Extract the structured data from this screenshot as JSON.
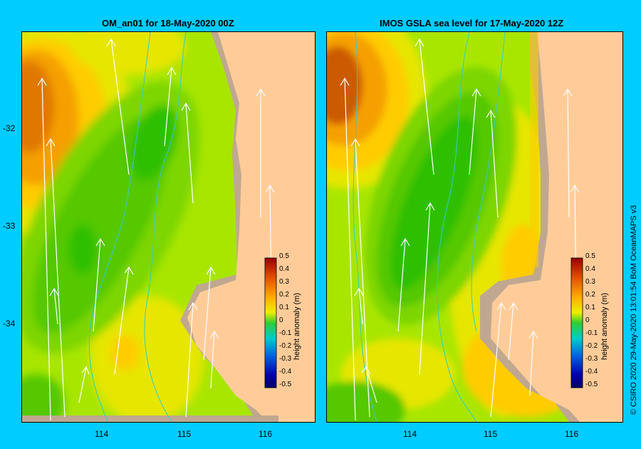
{
  "panels": [
    {
      "title": "OM_an01  for 18-May-2020 00Z"
    },
    {
      "title": "IMOS  GSLA sea level   for 17-May-2020 12Z"
    }
  ],
  "x_ticks": [
    "114",
    "115",
    "116"
  ],
  "y_ticks": [
    "-32",
    "-33",
    "-34"
  ],
  "colorbar": {
    "label": "height anomaly (m)",
    "ticks": [
      "0.5",
      "0.4",
      "0.3",
      "0.2",
      "0.1",
      "0",
      "-0.1",
      "-0.2",
      "-0.3",
      "-0.4",
      "-0.5"
    ],
    "min": -0.5,
    "max": 0.5
  },
  "credit": "© CSIRO 2020    29-May-2020 13:01:54 BoM OceanMAPS v3",
  "colors": {
    "background": "#00ccff",
    "land": "#ffcc99",
    "shelf": "#c0a890",
    "high": "#cc4400",
    "neutral": "#a8e600",
    "low": "#33cc33",
    "current_arrows": "#ffffff",
    "isobath": "#33cccc"
  },
  "icons": [
    "current-arrow-icon"
  ]
}
